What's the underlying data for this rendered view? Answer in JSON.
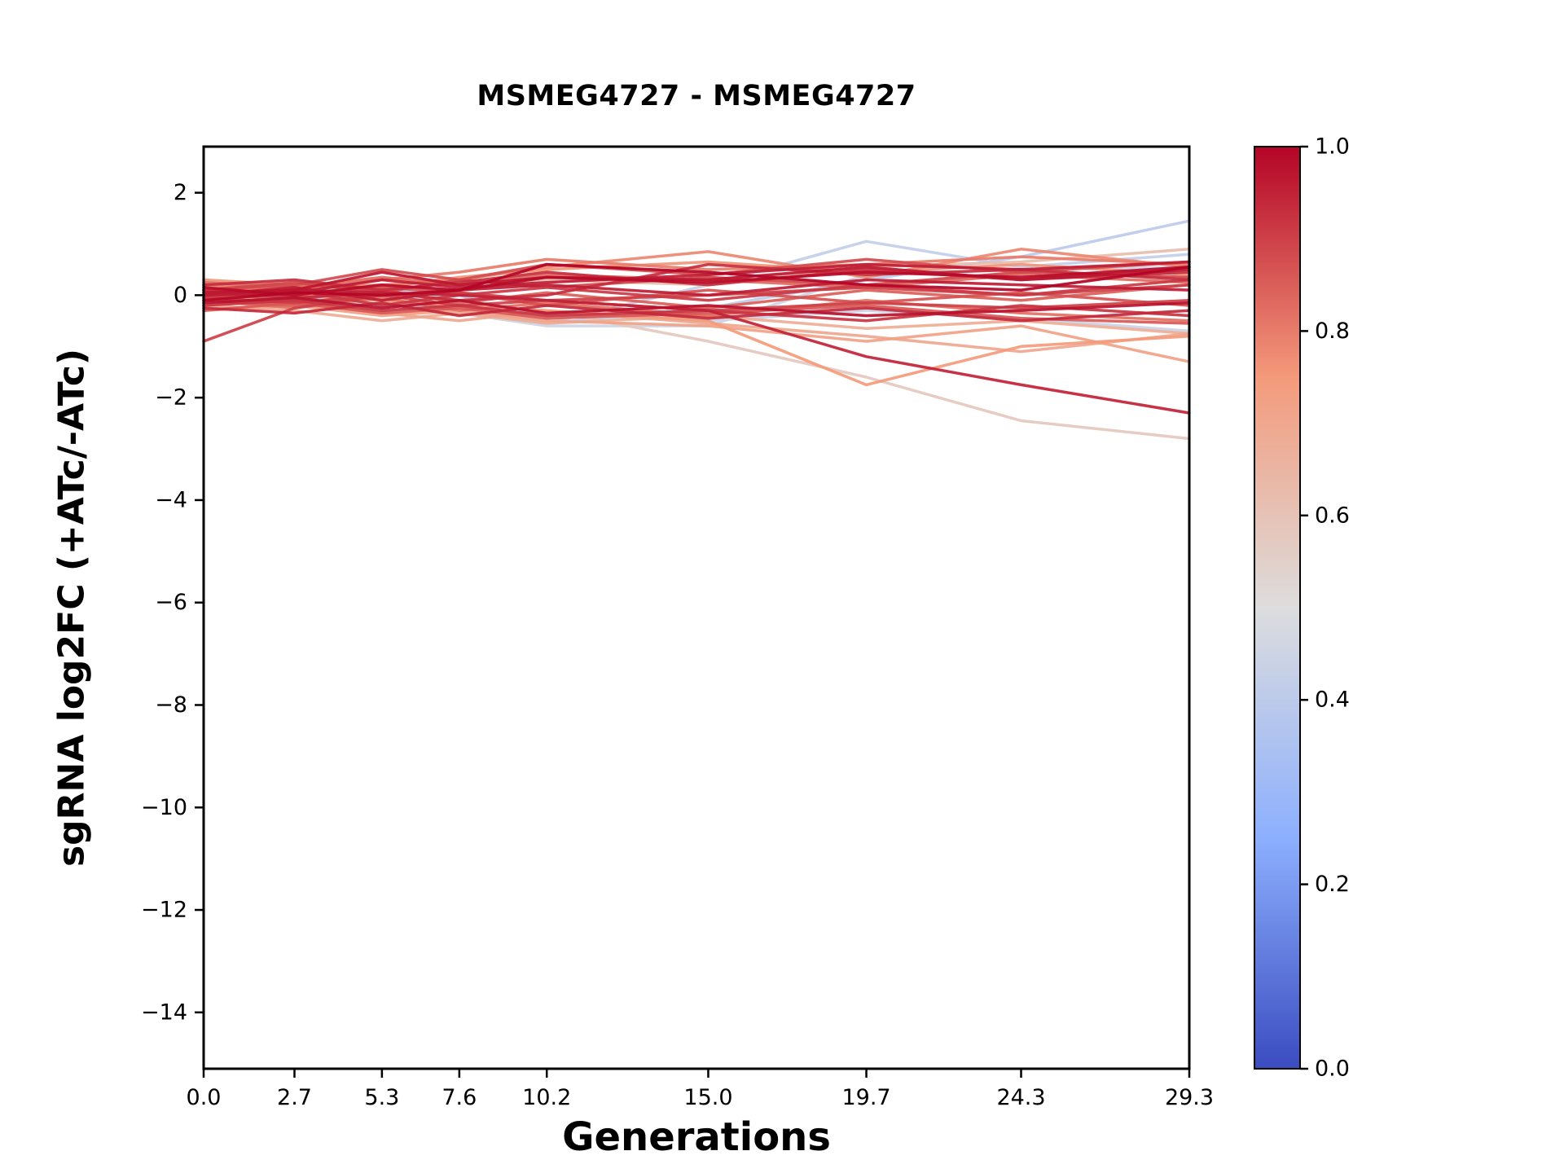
{
  "chart_data": {
    "type": "line",
    "title": "MSMEG4727 - MSMEG4727",
    "xlabel": "Generations",
    "ylabel": "sgRNA log2FC (+ATc/-ATc)",
    "x": [
      0.0,
      2.7,
      5.3,
      7.6,
      10.2,
      15.0,
      19.7,
      24.3,
      29.3
    ],
    "xlim": [
      0.0,
      29.3
    ],
    "ylim": [
      -15.1,
      2.9
    ],
    "grid": false,
    "x_ticks": {
      "values": [
        0.0,
        2.7,
        5.3,
        7.6,
        10.2,
        15.0,
        19.7,
        24.3,
        29.3
      ],
      "labels": [
        "0.0",
        "2.7",
        "5.3",
        "7.6",
        "10.2",
        "15.0",
        "19.7",
        "24.3",
        "29.3"
      ]
    },
    "y_ticks": {
      "values": [
        2,
        0,
        -2,
        -4,
        -6,
        -8,
        -10,
        -12,
        -14
      ],
      "labels": [
        "2",
        "0",
        "−2",
        "−4",
        "−6",
        "−8",
        "−10",
        "−12",
        "−14"
      ]
    },
    "colorbar": {
      "colormap": "coolwarm",
      "ticks": {
        "values": [
          1.0,
          0.8,
          0.6,
          0.4,
          0.2,
          0.0
        ],
        "labels": [
          "1.0",
          "0.8",
          "0.6",
          "0.4",
          "0.2",
          "0.0"
        ]
      }
    },
    "series": [
      {
        "c": 0.4,
        "y": [
          -0.1,
          0.0,
          -0.2,
          -0.3,
          -0.55,
          -0.25,
          0.3,
          0.75,
          1.45
        ]
      },
      {
        "c": 0.42,
        "y": [
          0.0,
          -0.1,
          0.1,
          0.0,
          -0.55,
          0.2,
          1.05,
          0.55,
          0.8
        ]
      },
      {
        "c": 0.44,
        "y": [
          0.1,
          0.2,
          0.0,
          -0.1,
          -0.4,
          -0.5,
          -0.3,
          -0.45,
          -0.7
        ]
      },
      {
        "c": 0.45,
        "y": [
          -0.15,
          0.05,
          -0.1,
          -0.35,
          -0.6,
          -0.6,
          0.4,
          0.5,
          0.55
        ]
      },
      {
        "c": 0.58,
        "y": [
          -0.2,
          -0.1,
          -0.15,
          -0.2,
          -0.3,
          -0.9,
          -1.6,
          -2.45,
          -2.8
        ]
      },
      {
        "c": 0.62,
        "y": [
          0.15,
          0.05,
          0.2,
          0.1,
          0.3,
          0.2,
          0.55,
          0.65,
          0.9
        ]
      },
      {
        "c": 0.68,
        "y": [
          -0.2,
          -0.3,
          -0.5,
          -0.35,
          -0.55,
          -0.4,
          -0.65,
          -0.5,
          -0.75
        ]
      },
      {
        "c": 0.7,
        "y": [
          0.0,
          -0.15,
          -0.35,
          -0.5,
          -0.3,
          -0.55,
          -0.8,
          -1.1,
          -0.75
        ]
      },
      {
        "c": 0.72,
        "y": [
          -0.3,
          -0.2,
          -0.4,
          -0.3,
          -0.5,
          -0.6,
          -0.9,
          -0.6,
          -1.3
        ]
      },
      {
        "c": 0.75,
        "y": [
          0.1,
          0.0,
          -0.1,
          -0.2,
          -0.3,
          -0.5,
          -1.75,
          -1.0,
          -0.8
        ]
      },
      {
        "c": 0.76,
        "y": [
          0.3,
          0.2,
          0.15,
          0.35,
          0.5,
          0.65,
          0.45,
          0.6,
          0.4
        ]
      },
      {
        "c": 0.78,
        "y": [
          0.1,
          0.15,
          0.2,
          0.3,
          0.55,
          0.85,
          0.35,
          0.9,
          0.55
        ]
      },
      {
        "c": 0.8,
        "y": [
          0.2,
          0.1,
          0.3,
          0.45,
          0.7,
          0.5,
          0.6,
          0.75,
          0.6
        ]
      },
      {
        "c": 0.82,
        "y": [
          -0.1,
          -0.25,
          -0.05,
          -0.3,
          -0.15,
          -0.4,
          -0.1,
          -0.35,
          -0.5
        ]
      },
      {
        "c": 0.83,
        "y": [
          0.25,
          0.15,
          0.35,
          0.2,
          0.4,
          0.3,
          0.15,
          0.4,
          0.25
        ]
      },
      {
        "c": 0.85,
        "y": [
          -0.1,
          -0.2,
          0.1,
          -0.15,
          0.05,
          -0.25,
          0.1,
          -0.1,
          0.2
        ]
      },
      {
        "c": 0.86,
        "y": [
          -0.3,
          -0.15,
          -0.35,
          -0.25,
          -0.45,
          -0.35,
          -0.2,
          -0.45,
          -0.55
        ]
      },
      {
        "c": 0.87,
        "y": [
          0.05,
          -0.1,
          0.15,
          0.05,
          -0.2,
          0.1,
          -0.15,
          0.05,
          -0.2
        ]
      },
      {
        "c": 0.88,
        "y": [
          0.1,
          0.2,
          0.5,
          0.3,
          0.6,
          0.4,
          0.7,
          0.45,
          0.65
        ]
      },
      {
        "c": 0.89,
        "y": [
          0.1,
          0.25,
          0.05,
          0.3,
          0.15,
          0.35,
          0.2,
          0.45,
          0.35
        ]
      },
      {
        "c": 0.9,
        "y": [
          -0.9,
          -0.25,
          0.0,
          0.05,
          -0.1,
          0.0,
          0.15,
          0.0,
          0.2
        ]
      },
      {
        "c": 0.9,
        "y": [
          -0.05,
          -0.15,
          0.0,
          -0.2,
          -0.1,
          -0.3,
          -0.15,
          -0.25,
          -0.1
        ]
      },
      {
        "c": 0.91,
        "y": [
          -0.05,
          0.1,
          -0.2,
          0.0,
          0.15,
          -0.1,
          0.2,
          0.0,
          0.3
        ]
      },
      {
        "c": 0.92,
        "y": [
          -0.2,
          -0.1,
          -0.3,
          -0.2,
          -0.4,
          -0.3,
          -0.5,
          -0.2,
          -0.4
        ]
      },
      {
        "c": 0.93,
        "y": [
          0.1,
          -0.05,
          0.05,
          -0.1,
          0.0,
          0.6,
          0.4,
          0.5,
          0.3
        ]
      },
      {
        "c": 0.93,
        "y": [
          0.2,
          0.3,
          0.1,
          0.25,
          0.45,
          0.2,
          0.5,
          0.3,
          0.45
        ]
      },
      {
        "c": 0.94,
        "y": [
          -0.25,
          -0.35,
          -0.15,
          -0.4,
          -0.2,
          -0.45,
          -0.25,
          -0.5,
          -0.3
        ]
      },
      {
        "c": 0.95,
        "y": [
          0.0,
          0.1,
          0.05,
          0.0,
          -0.1,
          -0.3,
          -1.2,
          -1.75,
          -2.3
        ]
      },
      {
        "c": 0.96,
        "y": [
          0.0,
          0.15,
          -0.1,
          0.1,
          0.2,
          0.0,
          0.3,
          0.2,
          0.1
        ]
      },
      {
        "c": 0.96,
        "y": [
          0.0,
          0.05,
          0.3,
          0.15,
          0.25,
          0.4,
          0.6,
          0.5,
          0.65
        ]
      },
      {
        "c": 0.97,
        "y": [
          0.05,
          0.1,
          0.45,
          0.2,
          0.35,
          0.3,
          0.55,
          0.3,
          0.5
        ]
      },
      {
        "c": 0.98,
        "y": [
          -0.15,
          -0.05,
          -0.25,
          -0.1,
          -0.35,
          -0.2,
          -0.4,
          -0.3,
          -0.15
        ]
      },
      {
        "c": 0.99,
        "y": [
          0.15,
          0.0,
          0.2,
          0.1,
          0.35,
          0.25,
          0.45,
          0.35,
          0.55
        ]
      },
      {
        "c": 1.0,
        "y": [
          -0.1,
          0.05,
          0.0,
          0.1,
          0.6,
          0.45,
          0.2,
          0.1,
          0.55
        ]
      }
    ]
  },
  "colors": {
    "background": "#ffffff",
    "axis": "#000000",
    "colormap_stops": [
      "#3b4cc0",
      "#8caffe",
      "#dddddd",
      "#f49a7b",
      "#b40426"
    ]
  }
}
